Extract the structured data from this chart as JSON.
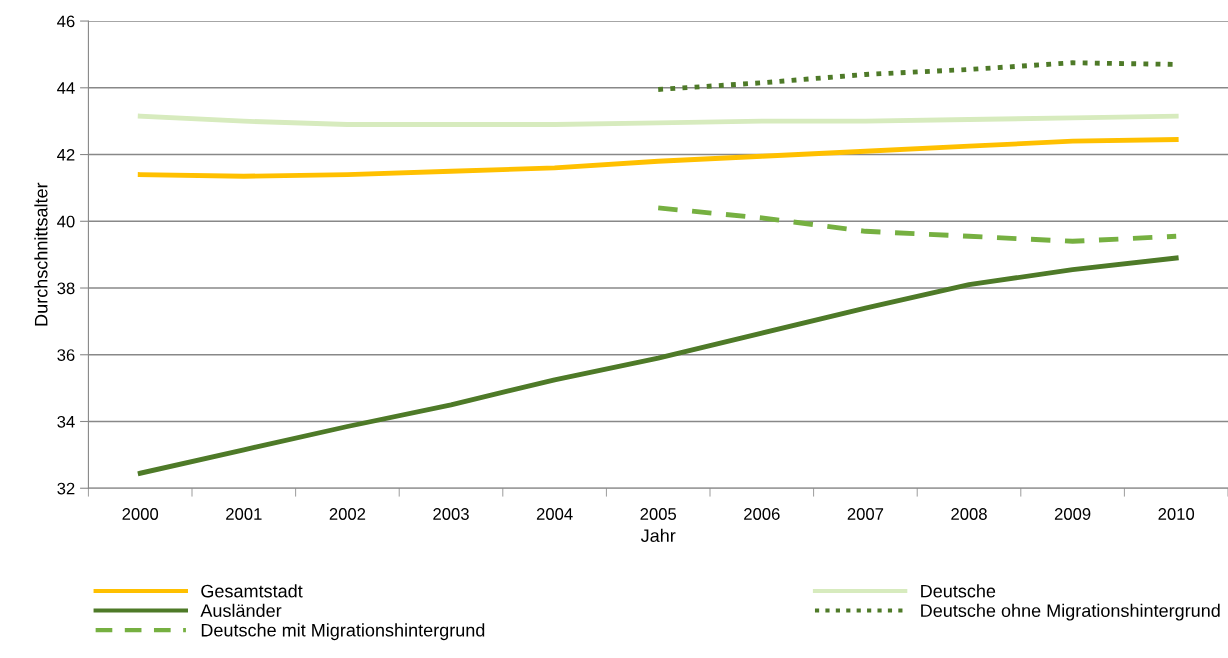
{
  "chart_data": {
    "type": "line",
    "xlabel": "Jahr",
    "ylabel": "Durchschnittsalter",
    "categories": [
      "2000",
      "2001",
      "2002",
      "2003",
      "2004",
      "2005",
      "2006",
      "2007",
      "2008",
      "2009",
      "2010"
    ],
    "series": [
      {
        "name": "Gesamtstadt",
        "color": "#ffc000",
        "line_style": "solid",
        "values": [
          41.4,
          41.35,
          41.4,
          41.5,
          41.6,
          41.8,
          41.95,
          42.1,
          42.25,
          42.4,
          42.45
        ]
      },
      {
        "name": "Deutsche",
        "color": "#d7ebbe",
        "line_style": "solid",
        "values": [
          43.15,
          43.0,
          42.9,
          42.9,
          42.9,
          42.95,
          43.0,
          43.0,
          43.05,
          43.1,
          43.15
        ]
      },
      {
        "name": "Ausländer",
        "color": "#4e7a28",
        "line_style": "solid",
        "values": [
          32.45,
          33.15,
          33.85,
          34.5,
          35.25,
          35.9,
          36.65,
          37.4,
          38.1,
          38.55,
          38.9
        ]
      },
      {
        "name": "Deutsche ohne Migrationshintergrund",
        "color": "#4e7a28",
        "line_style": "dotted",
        "values": [
          null,
          null,
          null,
          null,
          null,
          43.95,
          44.15,
          44.4,
          44.55,
          44.75,
          44.7
        ]
      },
      {
        "name": "Deutsche mit Migrationshintergrund",
        "color": "#76b041",
        "line_style": "dashed",
        "values": [
          null,
          null,
          null,
          null,
          null,
          40.4,
          40.1,
          39.7,
          39.55,
          39.4,
          39.55
        ]
      }
    ],
    "ylim": [
      32,
      46
    ],
    "yticks": [
      32,
      34,
      36,
      38,
      40,
      42,
      44,
      46
    ],
    "grid": "y",
    "legend": "bottom",
    "marker": "none"
  }
}
